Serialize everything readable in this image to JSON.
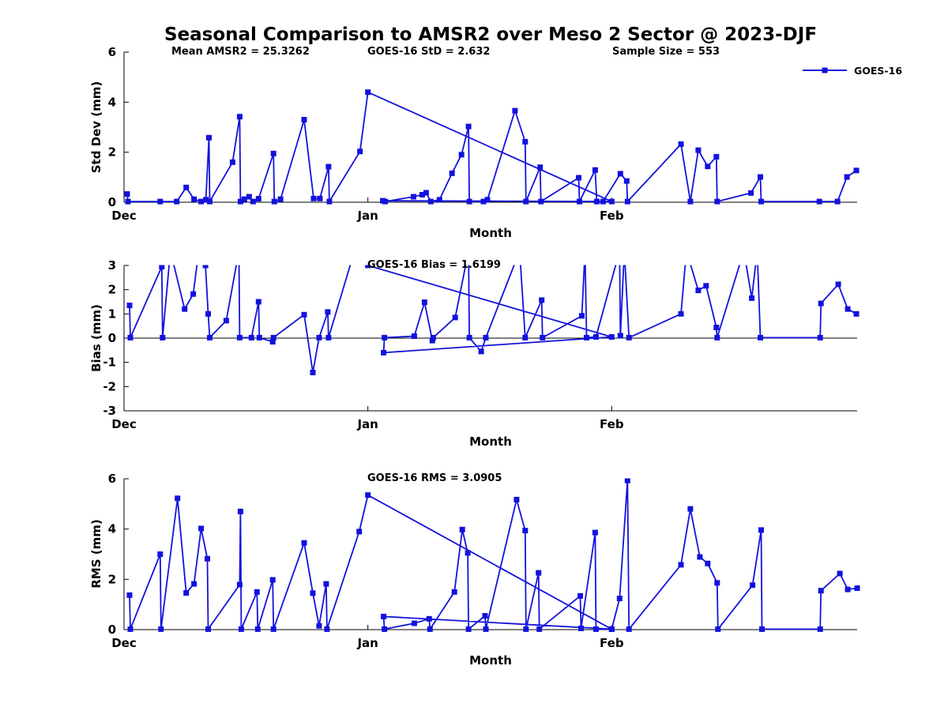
{
  "colors": {
    "line": "#1212DD",
    "axis": "#000000",
    "text": "#000000",
    "background": "#FFFFFF"
  },
  "chart_data": {
    "type": "line",
    "title": "Seasonal Comparison to AMSR2 over Meso 2 Sector @ 2023-DJF",
    "series": "GOES-16",
    "legend_label": "GOES-16",
    "legend_position": "top-right",
    "grid": false,
    "x_unit": "days since Dec 1 (Dec=0, Jan=31, Feb=62)",
    "charts": [
      {
        "name": "std-dev",
        "ylabel": "Std Dev (mm)",
        "xlabel": "Month",
        "ylim": [
          0,
          6
        ],
        "yticks": [
          0,
          2,
          4,
          6
        ],
        "xticks": [
          {
            "day": 0,
            "label": "Dec"
          },
          {
            "day": 31,
            "label": "Jan"
          },
          {
            "day": 62,
            "label": "Feb"
          }
        ],
        "zero_line": false,
        "annotations": [
          {
            "text": "Mean AMSR2 = 25.3262",
            "x": 217
          },
          {
            "text": "GOES-16 StD = 2.632",
            "x": 465
          },
          {
            "text": "Sample Size = 553",
            "x": 775
          }
        ],
        "points": [
          [
            0.4,
            0.33
          ],
          [
            0.5,
            0.03
          ],
          [
            4.6,
            0.03
          ],
          [
            6.7,
            0.03
          ],
          [
            7.9,
            0.59
          ],
          [
            8.9,
            0.12
          ],
          [
            9.8,
            0.03
          ],
          [
            10.4,
            0.1
          ],
          [
            10.8,
            2.58
          ],
          [
            10.9,
            0.03
          ],
          [
            13.8,
            1.6
          ],
          [
            14.7,
            3.42
          ],
          [
            14.8,
            0.03
          ],
          [
            15.3,
            0.12
          ],
          [
            15.9,
            0.22
          ],
          [
            16.4,
            0.03
          ],
          [
            17.1,
            0.14
          ],
          [
            19.0,
            1.95
          ],
          [
            19.1,
            0.03
          ],
          [
            19.9,
            0.12
          ],
          [
            22.9,
            3.3
          ],
          [
            24.1,
            0.15
          ],
          [
            24.9,
            0.15
          ],
          [
            26.0,
            1.42
          ],
          [
            26.1,
            0.03
          ],
          [
            30.0,
            2.03
          ],
          [
            31.0,
            4.4
          ],
          [
            62.0,
            0.03
          ],
          [
            32.9,
            0.06
          ],
          [
            33.2,
            0.03
          ],
          [
            36.8,
            0.22
          ],
          [
            37.9,
            0.3
          ],
          [
            38.4,
            0.38
          ],
          [
            39.0,
            0.03
          ],
          [
            40.1,
            0.1
          ],
          [
            41.7,
            1.16
          ],
          [
            42.9,
            1.9
          ],
          [
            43.8,
            3.03
          ],
          [
            43.9,
            0.03
          ],
          [
            45.7,
            0.03
          ],
          [
            46.2,
            0.1
          ],
          [
            49.7,
            3.66
          ],
          [
            51.0,
            2.42
          ],
          [
            51.1,
            0.03
          ],
          [
            52.9,
            1.4
          ],
          [
            53.0,
            0.03
          ],
          [
            57.8,
            0.98
          ],
          [
            57.9,
            0.03
          ],
          [
            59.9,
            1.29
          ],
          [
            60.1,
            0.03
          ],
          [
            60.9,
            0.03
          ],
          [
            63.1,
            1.14
          ],
          [
            63.9,
            0.85
          ],
          [
            64.0,
            0.03
          ],
          [
            70.8,
            2.32
          ],
          [
            72.0,
            0.03
          ],
          [
            73.0,
            2.08
          ],
          [
            74.2,
            1.43
          ],
          [
            75.3,
            1.82
          ],
          [
            75.4,
            0.03
          ],
          [
            79.7,
            0.37
          ],
          [
            80.9,
            1.01
          ],
          [
            81.0,
            0.03
          ],
          [
            88.4,
            0.03
          ],
          [
            90.7,
            0.03
          ],
          [
            91.9,
            1.01
          ],
          [
            93.1,
            1.27
          ]
        ]
      },
      {
        "name": "bias",
        "ylabel": "Bias (mm)",
        "xlabel": "Month",
        "ylim": [
          -3,
          3
        ],
        "yticks": [
          -3,
          -2,
          -1,
          0,
          1,
          2,
          3
        ],
        "xticks": [
          {
            "day": 0,
            "label": "Dec"
          },
          {
            "day": 31,
            "label": "Jan"
          },
          {
            "day": 62,
            "label": "Feb"
          }
        ],
        "zero_line": true,
        "annotations": [
          {
            "text": "GOES-16 Bias = 1.6199",
            "x": 465
          }
        ],
        "points": [
          [
            0.7,
            1.35
          ],
          [
            0.8,
            0.02
          ],
          [
            4.8,
            2.95
          ],
          [
            4.9,
            0.02
          ],
          [
            5.9,
            3.6
          ],
          [
            7.7,
            1.2
          ],
          [
            8.8,
            1.82
          ],
          [
            9.5,
            3.6
          ],
          [
            10.35,
            3.0
          ],
          [
            10.7,
            1.0
          ],
          [
            10.9,
            0.02
          ],
          [
            13.0,
            0.72
          ],
          [
            14.6,
            3.6
          ],
          [
            14.7,
            0.02
          ],
          [
            16.2,
            0.02
          ],
          [
            17.1,
            1.5
          ],
          [
            17.2,
            0.02
          ],
          [
            18.9,
            -0.15
          ],
          [
            19.0,
            0.02
          ],
          [
            22.9,
            0.97
          ],
          [
            24.0,
            -1.42
          ],
          [
            24.8,
            0.02
          ],
          [
            25.9,
            1.08
          ],
          [
            26.0,
            0.02
          ],
          [
            29.3,
            3.6
          ],
          [
            31.0,
            3.0
          ],
          [
            62.0,
            0.05
          ],
          [
            33.0,
            -0.6
          ],
          [
            33.1,
            0.02
          ],
          [
            36.9,
            0.08
          ],
          [
            38.2,
            1.48
          ],
          [
            39.2,
            -0.1
          ],
          [
            39.3,
            0.02
          ],
          [
            42.1,
            0.85
          ],
          [
            43.8,
            3.6
          ],
          [
            43.9,
            0.02
          ],
          [
            45.4,
            -0.55
          ],
          [
            46.0,
            0.02
          ],
          [
            50.3,
            3.6
          ],
          [
            51.0,
            0.02
          ],
          [
            53.1,
            1.57
          ],
          [
            53.2,
            0.02
          ],
          [
            58.2,
            0.92
          ],
          [
            58.6,
            3.6
          ],
          [
            58.8,
            0.02
          ],
          [
            60.0,
            0.05
          ],
          [
            63.0,
            3.6
          ],
          [
            63.1,
            0.1
          ],
          [
            63.6,
            3.6
          ],
          [
            64.2,
            0.02
          ],
          [
            70.8,
            1.0
          ],
          [
            71.5,
            3.6
          ],
          [
            73.0,
            1.97
          ],
          [
            74.0,
            2.16
          ],
          [
            75.3,
            0.44
          ],
          [
            75.4,
            0.02
          ],
          [
            78.8,
            3.6
          ],
          [
            79.8,
            1.65
          ],
          [
            80.5,
            3.6
          ],
          [
            80.9,
            0.02
          ],
          [
            88.5,
            0.02
          ],
          [
            88.6,
            1.43
          ],
          [
            90.8,
            2.22
          ],
          [
            92.0,
            1.2
          ],
          [
            93.1,
            1.0
          ]
        ]
      },
      {
        "name": "rms",
        "ylabel": "RMS (mm)",
        "xlabel": "Month",
        "ylim": [
          0,
          6
        ],
        "yticks": [
          0,
          2,
          4,
          6
        ],
        "xticks": [
          {
            "day": 0,
            "label": "Dec"
          },
          {
            "day": 31,
            "label": "Jan"
          },
          {
            "day": 62,
            "label": "Feb"
          }
        ],
        "zero_line": false,
        "annotations": [
          {
            "text": "GOES-16 RMS = 3.0905",
            "x": 465
          }
        ],
        "points": [
          [
            0.7,
            1.37
          ],
          [
            0.8,
            0.02
          ],
          [
            4.6,
            3.0
          ],
          [
            4.7,
            0.02
          ],
          [
            6.8,
            5.22
          ],
          [
            7.9,
            1.46
          ],
          [
            8.9,
            1.82
          ],
          [
            9.8,
            4.02
          ],
          [
            10.6,
            2.82
          ],
          [
            10.7,
            0.02
          ],
          [
            14.7,
            1.79
          ],
          [
            14.8,
            4.7
          ],
          [
            14.9,
            0.02
          ],
          [
            16.9,
            1.5
          ],
          [
            17.0,
            0.02
          ],
          [
            18.9,
            1.98
          ],
          [
            19.0,
            0.02
          ],
          [
            22.9,
            3.45
          ],
          [
            24.0,
            1.45
          ],
          [
            24.8,
            0.15
          ],
          [
            25.7,
            1.82
          ],
          [
            25.8,
            0.02
          ],
          [
            29.9,
            3.9
          ],
          [
            31.0,
            5.35
          ],
          [
            62.0,
            0.02
          ],
          [
            33.0,
            0.52
          ],
          [
            33.1,
            0.02
          ],
          [
            36.9,
            0.25
          ],
          [
            38.8,
            0.43
          ],
          [
            38.9,
            0.02
          ],
          [
            42.0,
            1.5
          ],
          [
            43.0,
            3.98
          ],
          [
            43.7,
            3.05
          ],
          [
            43.8,
            0.02
          ],
          [
            45.9,
            0.55
          ],
          [
            46.0,
            0.02
          ],
          [
            49.9,
            5.17
          ],
          [
            51.0,
            3.94
          ],
          [
            51.1,
            0.02
          ],
          [
            52.7,
            2.26
          ],
          [
            52.8,
            0.02
          ],
          [
            58.0,
            1.34
          ],
          [
            58.1,
            0.05
          ],
          [
            59.9,
            3.86
          ],
          [
            60.0,
            0.02
          ],
          [
            62.0,
            0.02
          ],
          [
            63.0,
            1.24
          ],
          [
            64.0,
            5.93
          ],
          [
            64.2,
            0.02
          ],
          [
            70.8,
            2.58
          ],
          [
            72.0,
            4.8
          ],
          [
            73.2,
            2.89
          ],
          [
            74.2,
            2.63
          ],
          [
            75.4,
            1.86
          ],
          [
            75.5,
            0.02
          ],
          [
            79.9,
            1.77
          ],
          [
            81.0,
            3.96
          ],
          [
            81.1,
            0.02
          ],
          [
            88.5,
            0.02
          ],
          [
            88.6,
            1.55
          ],
          [
            91.0,
            2.23
          ],
          [
            92.0,
            1.6
          ],
          [
            93.2,
            1.65
          ]
        ]
      }
    ]
  }
}
